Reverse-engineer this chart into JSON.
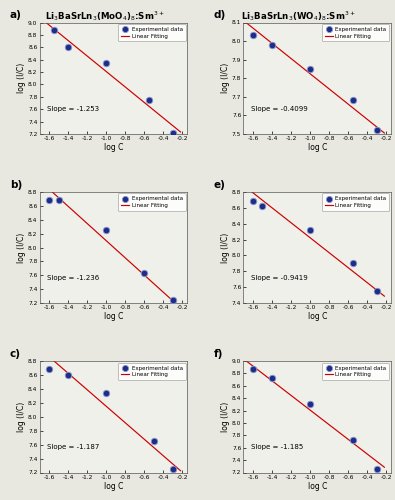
{
  "title_left": "Li$_3$BaSrLn$_3$(MoO$_4$)$_8$:Sm$^{3+}$",
  "title_right": "Li$_3$BaSrLn$_3$(WO$_4$)$_8$:Sm$^{3+}$",
  "panels": [
    {
      "label": "a)",
      "col": 0,
      "row": 0,
      "slope": -1.253,
      "slope_text": "Slope = -1.253",
      "x": [
        -1.55,
        -1.4,
        -1.0,
        -0.55,
        -0.3
      ],
      "y": [
        8.88,
        8.6,
        8.34,
        7.75,
        7.22
      ],
      "ylim": [
        7.2,
        9.0
      ],
      "yticks": [
        7.2,
        7.4,
        7.6,
        7.8,
        8.0,
        8.2,
        8.4,
        8.6,
        8.8,
        9.0
      ]
    },
    {
      "label": "b)",
      "col": 0,
      "row": 1,
      "slope": -1.236,
      "slope_text": "Slope = -1.236",
      "x": [
        -1.6,
        -1.5,
        -1.0,
        -0.6,
        -0.3
      ],
      "y": [
        8.68,
        8.68,
        8.25,
        7.63,
        7.25
      ],
      "ylim": [
        7.2,
        8.8
      ],
      "yticks": [
        7.2,
        7.4,
        7.6,
        7.8,
        8.0,
        8.2,
        8.4,
        8.6,
        8.8
      ]
    },
    {
      "label": "c)",
      "col": 0,
      "row": 2,
      "slope": -1.187,
      "slope_text": "Slope = -1.187",
      "x": [
        -1.6,
        -1.4,
        -1.0,
        -0.5,
        -0.3
      ],
      "y": [
        8.68,
        8.6,
        8.34,
        7.65,
        7.25
      ],
      "ylim": [
        7.2,
        8.8
      ],
      "yticks": [
        7.2,
        7.4,
        7.6,
        7.8,
        8.0,
        8.2,
        8.4,
        8.6,
        8.8
      ]
    },
    {
      "label": "d)",
      "col": 1,
      "row": 0,
      "slope": -0.4099,
      "slope_text": "Slope = -0.4099",
      "x": [
        -1.6,
        -1.4,
        -1.0,
        -0.55,
        -0.3
      ],
      "y": [
        8.03,
        7.98,
        7.85,
        7.68,
        7.52
      ],
      "ylim": [
        7.5,
        8.1
      ],
      "yticks": [
        7.5,
        7.6,
        7.7,
        7.8,
        7.9,
        8.0,
        8.1
      ]
    },
    {
      "label": "e)",
      "col": 1,
      "row": 1,
      "slope": -0.9419,
      "slope_text": "Slope = -0.9419",
      "x": [
        -1.6,
        -1.5,
        -1.0,
        -0.55,
        -0.3
      ],
      "y": [
        8.68,
        8.62,
        8.32,
        7.9,
        7.55
      ],
      "ylim": [
        7.4,
        8.8
      ],
      "yticks": [
        7.4,
        7.6,
        7.8,
        8.0,
        8.2,
        8.4,
        8.6,
        8.8
      ]
    },
    {
      "label": "f)",
      "col": 1,
      "row": 2,
      "slope": -1.185,
      "slope_text": "Slope = -1.185",
      "x": [
        -1.6,
        -1.4,
        -1.0,
        -0.55,
        -0.3
      ],
      "y": [
        8.88,
        8.72,
        8.3,
        7.72,
        7.25
      ],
      "ylim": [
        7.2,
        9.0
      ],
      "yticks": [
        7.2,
        7.4,
        7.6,
        7.8,
        8.0,
        8.2,
        8.4,
        8.6,
        8.8,
        9.0
      ]
    }
  ],
  "xlim": [
    -1.7,
    -0.15
  ],
  "xticks": [
    -1.6,
    -1.4,
    -1.2,
    -1.0,
    -0.8,
    -0.6,
    -0.4,
    -0.2
  ],
  "xlabel": "log C",
  "ylabel": "log (I/C)",
  "dot_color": "#1f2d8a",
  "dot_edge_color": "#8899cc",
  "line_color": "#cc0000",
  "bg_color": "#f0f0ea"
}
